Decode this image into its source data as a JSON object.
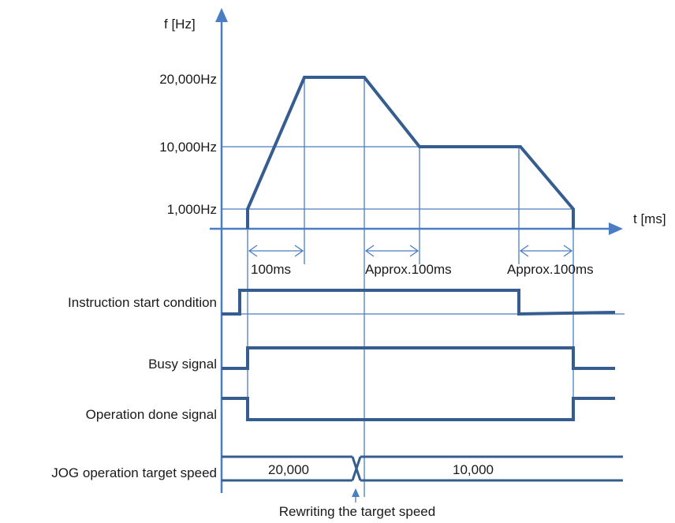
{
  "axes": {
    "y_label": "f [Hz]",
    "x_label": "t [ms]"
  },
  "frequency_levels": [
    "20,000Hz",
    "10,000Hz",
    "1,000Hz"
  ],
  "intervals": [
    "100ms",
    "Approx.100ms",
    "Approx.100ms"
  ],
  "signals": [
    {
      "label": "Instruction start condition"
    },
    {
      "label": "Busy signal"
    },
    {
      "label": "Operation done signal"
    },
    {
      "label": "JOG operation target speed"
    }
  ],
  "target_speed_values": [
    "20,000",
    "10,000"
  ],
  "annotation": "Rewriting the target speed",
  "colors": {
    "accent": "#4a7ec2",
    "trace": "#365d8f"
  }
}
